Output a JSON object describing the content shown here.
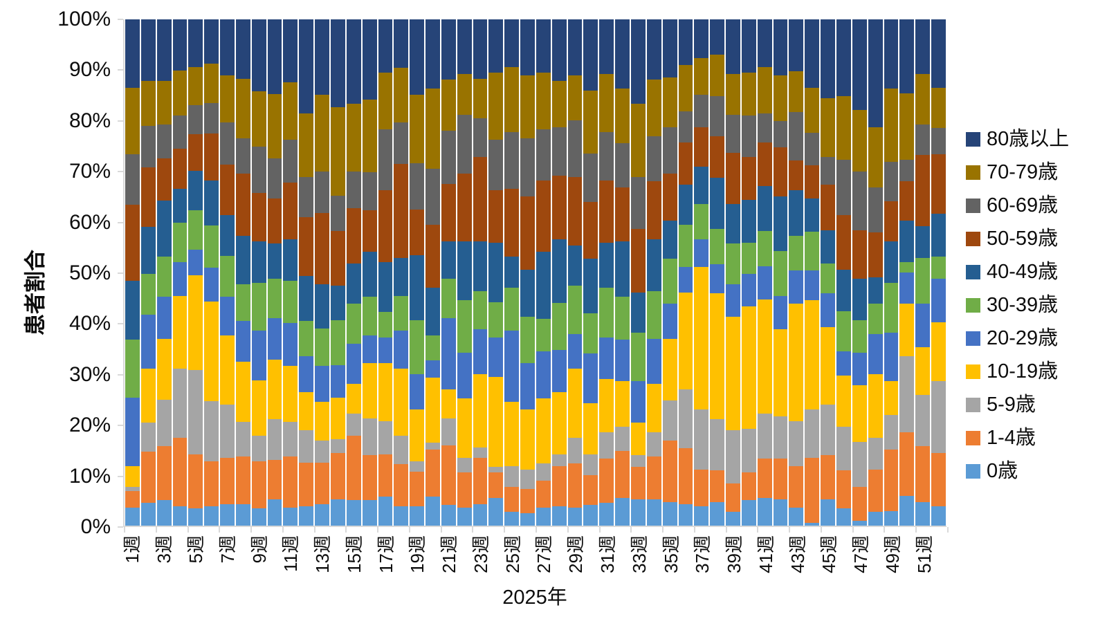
{
  "chart_data": {
    "type": "bar",
    "stacked": true,
    "percent_stacked": true,
    "title": "",
    "xlabel": "2025年",
    "ylabel": "患者割合",
    "ylim": [
      0,
      100
    ],
    "grid": false,
    "legend_position": "right",
    "legend_order": "top-is-last-series",
    "y_tick_labels": [
      "0%",
      "10%",
      "20%",
      "30%",
      "40%",
      "50%",
      "60%",
      "70%",
      "80%",
      "90%",
      "100%"
    ],
    "x_tick_labels": [
      "1週",
      "3週",
      "5週",
      "7週",
      "9週",
      "11週",
      "13週",
      "15週",
      "17週",
      "19週",
      "21週",
      "23週",
      "25週",
      "27週",
      "29週",
      "31週",
      "33週",
      "35週",
      "37週",
      "39週",
      "41週",
      "43週",
      "45週",
      "47週",
      "49週",
      "51週"
    ],
    "categories_weeks": [
      1,
      2,
      3,
      4,
      5,
      6,
      7,
      8,
      9,
      10,
      11,
      12,
      13,
      14,
      15,
      16,
      17,
      18,
      19,
      20,
      21,
      22,
      23,
      24,
      25,
      26,
      27,
      28,
      29,
      30,
      31,
      32,
      33,
      34,
      35,
      36,
      37,
      38,
      39,
      40,
      41,
      42,
      43,
      44,
      45,
      46,
      47,
      48,
      49,
      50,
      51,
      52
    ],
    "series": [
      {
        "name": "0歳",
        "color": "#5B9BD5",
        "values": [
          3.6,
          4.5,
          5.0,
          3.8,
          3.4,
          3.8,
          4.3,
          4.3,
          3.4,
          5.2,
          3.6,
          3.8,
          4.3,
          5.2,
          5.0,
          5.0,
          5.7,
          3.8,
          3.8,
          5.7,
          4.1,
          3.6,
          4.3,
          5.4,
          2.7,
          2.5,
          3.6,
          3.8,
          3.6,
          4.1,
          4.5,
          5.4,
          5.2,
          5.2,
          4.7,
          4.3,
          3.8,
          4.7,
          2.7,
          5.0,
          5.4,
          5.2,
          3.6,
          0.5,
          5.2,
          3.4,
          1.0,
          2.7,
          2.9,
          5.9,
          4.7,
          3.8
        ]
      },
      {
        "name": "1-4歳",
        "color": "#ED7D31",
        "values": [
          3.2,
          10.1,
          10.7,
          13.5,
          10.7,
          8.9,
          9.1,
          9.4,
          9.3,
          7.8,
          10.1,
          8.7,
          8.2,
          9.1,
          12.8,
          8.9,
          8.4,
          8.3,
          6.9,
          9.3,
          11.8,
          6.9,
          9.1,
          5.1,
          5.0,
          4.8,
          5.3,
          8.0,
          8.7,
          5.9,
          8.7,
          9.4,
          6.4,
          8.5,
          12.1,
          11.0,
          7.3,
          6.2,
          5.7,
          5.5,
          7.8,
          8.0,
          8.2,
          12.9,
          8.7,
          7.5,
          6.7,
          8.4,
          12.1,
          12.5,
          11.0,
          10.5
        ]
      },
      {
        "name": "5-9歳",
        "color": "#A5A5A5",
        "values": [
          0.9,
          5.7,
          9.1,
          13.7,
          16.7,
          11.9,
          10.5,
          6.8,
          5.1,
          8.0,
          6.8,
          6.4,
          4.3,
          2.8,
          4.3,
          7.3,
          6.6,
          5.7,
          2.0,
          1.4,
          5.3,
          2.9,
          2.1,
          1.1,
          4.1,
          3.8,
          3.4,
          2.3,
          5.0,
          4.1,
          5.2,
          4.8,
          2.3,
          4.7,
          8.0,
          11.6,
          11.9,
          10.1,
          10.5,
          8.6,
          8.9,
          8.4,
          8.9,
          9.6,
          10.0,
          8.7,
          8.9,
          6.2,
          6.9,
          15.1,
          10.1,
          14.2
        ]
      },
      {
        "name": "10-19歳",
        "color": "#FFC000",
        "values": [
          4.1,
          10.7,
          12.1,
          14.4,
          18.7,
          19.6,
          13.7,
          11.9,
          10.9,
          11.8,
          11.0,
          7.5,
          7.6,
          8.2,
          5.9,
          10.9,
          11.4,
          13.2,
          10.3,
          12.8,
          5.7,
          11.7,
          14.4,
          17.8,
          12.6,
          11.9,
          12.8,
          12.3,
          13.7,
          10.1,
          10.6,
          8.9,
          6.4,
          9.6,
          12.1,
          19.2,
          28.1,
          24.9,
          22.4,
          24.2,
          22.6,
          17.2,
          23.1,
          21.5,
          15.3,
          10.0,
          11.2,
          12.6,
          6.6,
          10.3,
          9.5,
          11.6
        ]
      },
      {
        "name": "20-29歳",
        "color": "#4472C4",
        "values": [
          13.5,
          10.7,
          8.3,
          6.6,
          5.0,
          6.7,
          7.6,
          8.0,
          9.8,
          8.2,
          8.6,
          7.1,
          7.1,
          6.4,
          8.0,
          5.5,
          5.1,
          7.5,
          6.9,
          3.4,
          14.1,
          9.1,
          8.9,
          7.8,
          14.2,
          9.1,
          9.3,
          8.3,
          6.9,
          9.8,
          8.2,
          8.2,
          8.2,
          8.9,
          6.9,
          5.0,
          5.5,
          5.7,
          6.4,
          6.4,
          6.6,
          6.6,
          6.6,
          5.9,
          6.7,
          4.8,
          6.4,
          8.0,
          9.6,
          6.2,
          8.5,
          8.7
        ]
      },
      {
        "name": "30-39歳",
        "color": "#70AD47",
        "values": [
          11.4,
          8.0,
          8.0,
          7.8,
          7.8,
          8.4,
          8.1,
          7.3,
          9.4,
          7.8,
          8.3,
          6.9,
          7.5,
          8.9,
          7.8,
          7.6,
          5.0,
          6.9,
          10.7,
          5.0,
          7.8,
          10.3,
          7.5,
          7.0,
          8.4,
          9.2,
          6.4,
          9.3,
          9.5,
          8.0,
          9.8,
          8.5,
          9.6,
          9.4,
          8.9,
          8.4,
          7.0,
          7.0,
          8.0,
          6.2,
          6.9,
          8.9,
          6.9,
          7.6,
          5.9,
          8.0,
          6.4,
          5.9,
          9.8,
          2.0,
          9.1,
          4.4
        ]
      },
      {
        "name": "40-49歳",
        "color": "#255E91",
        "values": [
          11.7,
          9.3,
          11.0,
          6.8,
          7.8,
          8.9,
          8.0,
          9.5,
          8.2,
          6.9,
          8.2,
          8.9,
          8.7,
          6.8,
          8.0,
          8.9,
          9.8,
          7.5,
          12.8,
          9.4,
          7.3,
          11.6,
          9.8,
          11.7,
          6.2,
          9.3,
          13.3,
          12.6,
          8.0,
          10.7,
          8.9,
          10.9,
          8.0,
          10.3,
          7.5,
          7.8,
          7.3,
          10.1,
          7.9,
          8.4,
          8.9,
          10.7,
          8.9,
          6.6,
          6.6,
          8.2,
          8.2,
          5.2,
          8.2,
          8.2,
          6.2,
          8.4
        ]
      },
      {
        "name": "50-59歳",
        "color": "#9E480E",
        "values": [
          15.0,
          11.8,
          8.4,
          7.8,
          7.3,
          9.2,
          10.0,
          12.3,
          9.6,
          8.9,
          11.2,
          11.6,
          14.1,
          10.8,
          10.9,
          8.2,
          14.2,
          18.5,
          9.1,
          12.5,
          11.4,
          13.5,
          16.7,
          10.3,
          13.4,
          14.4,
          14.1,
          12.5,
          13.5,
          11.2,
          12.3,
          10.7,
          12.5,
          11.4,
          9.4,
          8.4,
          7.8,
          8.2,
          10.1,
          8.5,
          8.6,
          9.8,
          5.9,
          6.6,
          8.9,
          10.8,
          9.6,
          8.9,
          8.0,
          7.8,
          14.2,
          11.7
        ]
      },
      {
        "name": "60-69歳",
        "color": "#636363",
        "values": [
          10.0,
          8.2,
          6.6,
          6.6,
          5.7,
          6.1,
          8.4,
          7.0,
          9.2,
          8.0,
          8.4,
          8.0,
          8.2,
          7.0,
          7.3,
          7.5,
          12.1,
          8.2,
          9.1,
          11.0,
          10.5,
          11.6,
          7.7,
          10.0,
          11.2,
          11.5,
          10.1,
          9.6,
          11.2,
          9.6,
          9.6,
          8.7,
          10.3,
          8.9,
          9.1,
          6.2,
          6.4,
          8.0,
          7.5,
          8.2,
          5.8,
          5.1,
          9.6,
          6.4,
          5.5,
          10.9,
          11.6,
          8.9,
          7.8,
          4.3,
          5.9,
          5.2
        ]
      },
      {
        "name": "70-79歳",
        "color": "#997300",
        "values": [
          13.1,
          8.9,
          8.7,
          8.9,
          7.5,
          7.8,
          9.3,
          11.8,
          10.9,
          12.7,
          11.4,
          12.6,
          15.1,
          17.4,
          13.3,
          14.4,
          11.2,
          10.8,
          13.5,
          15.8,
          10.1,
          8.0,
          7.8,
          13.3,
          12.8,
          12.5,
          11.2,
          9.2,
          8.9,
          12.5,
          11.4,
          10.8,
          14.4,
          11.2,
          9.8,
          9.1,
          7.3,
          8.2,
          8.0,
          8.5,
          9.1,
          9.1,
          8.0,
          8.9,
          11.6,
          12.6,
          12.1,
          11.9,
          14.4,
          13.1,
          10.0,
          8.0
        ]
      },
      {
        "name": "80歳以上",
        "color": "#264478",
        "values": [
          13.5,
          12.1,
          12.1,
          10.1,
          9.4,
          8.7,
          11.0,
          11.7,
          14.2,
          14.7,
          12.4,
          18.5,
          14.9,
          17.4,
          16.7,
          15.8,
          10.5,
          9.6,
          14.9,
          13.7,
          11.9,
          10.8,
          11.7,
          10.5,
          9.4,
          11.0,
          10.5,
          12.1,
          11.0,
          14.0,
          10.8,
          13.7,
          16.7,
          11.9,
          11.5,
          9.0,
          7.6,
          6.9,
          10.8,
          10.5,
          9.4,
          11.0,
          10.3,
          13.5,
          15.6,
          15.1,
          17.9,
          21.3,
          13.7,
          14.6,
          10.8,
          13.5
        ]
      }
    ]
  },
  "axes": {
    "x_title": "2025年",
    "y_title": "患者割合"
  },
  "colors": {
    "axis_line": "#d9d9d9",
    "text": "#0d0d0d",
    "background": "#ffffff"
  }
}
